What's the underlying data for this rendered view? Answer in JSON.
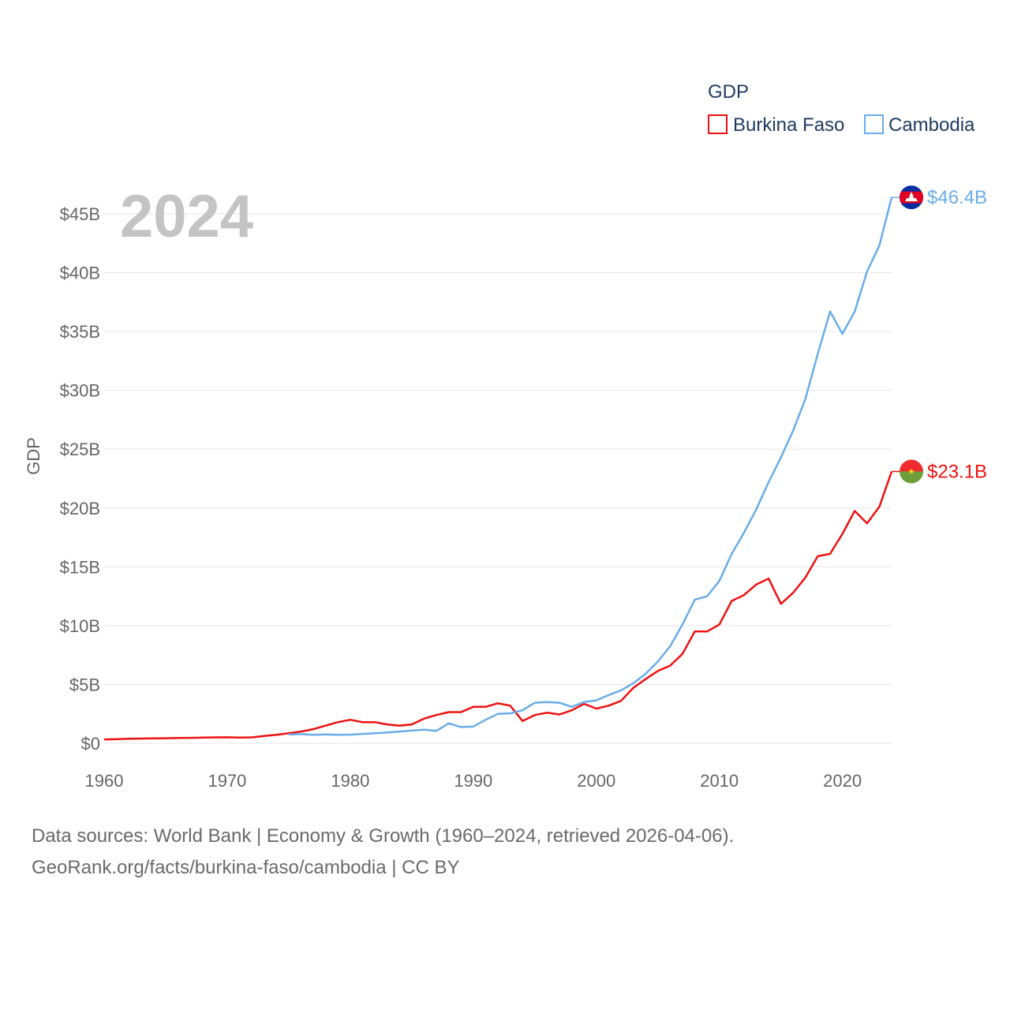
{
  "colors": {
    "burkina": "#ee1111",
    "cambodia": "#6aade8",
    "grid": "#e6e6e6",
    "year": "#c4c4c4"
  },
  "chart_data": {
    "type": "line",
    "title": "GDP",
    "year_label": "2024",
    "ylabel": "GDP",
    "xlabel": "",
    "xlim": [
      1960,
      2024
    ],
    "ylim": [
      0,
      45
    ],
    "x_ticks": [
      {
        "value": 1960,
        "label": "1960"
      },
      {
        "value": 1970,
        "label": "1970"
      },
      {
        "value": 1980,
        "label": "1980"
      },
      {
        "value": 1990,
        "label": "1990"
      },
      {
        "value": 2000,
        "label": "2000"
      },
      {
        "value": 2010,
        "label": "2010"
      },
      {
        "value": 2020,
        "label": "2020"
      }
    ],
    "y_ticks": [
      {
        "value": 0,
        "label": "$0"
      },
      {
        "value": 5,
        "label": "$5B"
      },
      {
        "value": 10,
        "label": "$10B"
      },
      {
        "value": 15,
        "label": "$15B"
      },
      {
        "value": 20,
        "label": "$20B"
      },
      {
        "value": 25,
        "label": "$25B"
      },
      {
        "value": 30,
        "label": "$30B"
      },
      {
        "value": 35,
        "label": "$35B"
      },
      {
        "value": 40,
        "label": "$40B"
      },
      {
        "value": 45,
        "label": "$45B"
      }
    ],
    "legend": {
      "title": "GDP",
      "placement": "top-right"
    },
    "series": [
      {
        "name": "Burkina Faso",
        "color": "#ee1111",
        "end_label": "$23.1B",
        "flag": "burkina-faso",
        "x": [
          1960,
          1961,
          1962,
          1963,
          1964,
          1965,
          1966,
          1967,
          1968,
          1969,
          1970,
          1971,
          1972,
          1973,
          1974,
          1975,
          1976,
          1977,
          1978,
          1979,
          1980,
          1981,
          1982,
          1983,
          1984,
          1985,
          1986,
          1987,
          1988,
          1989,
          1990,
          1991,
          1992,
          1993,
          1994,
          1995,
          1996,
          1997,
          1998,
          1999,
          2000,
          2001,
          2002,
          2003,
          2004,
          2005,
          2006,
          2007,
          2008,
          2009,
          2010,
          2011,
          2012,
          2013,
          2014,
          2015,
          2016,
          2017,
          2018,
          2019,
          2020,
          2021,
          2022,
          2023,
          2024
        ],
        "values": [
          0.33,
          0.35,
          0.38,
          0.4,
          0.42,
          0.43,
          0.45,
          0.46,
          0.48,
          0.5,
          0.51,
          0.48,
          0.5,
          0.62,
          0.72,
          0.85,
          1.0,
          1.2,
          1.5,
          1.8,
          2.0,
          1.8,
          1.8,
          1.6,
          1.5,
          1.6,
          2.1,
          2.4,
          2.65,
          2.65,
          3.1,
          3.1,
          3.4,
          3.2,
          1.9,
          2.4,
          2.6,
          2.45,
          2.8,
          3.35,
          2.95,
          3.2,
          3.6,
          4.7,
          5.45,
          6.15,
          6.6,
          7.6,
          9.5,
          9.5,
          10.1,
          12.1,
          12.6,
          13.5,
          14.0,
          11.85,
          12.8,
          14.1,
          15.9,
          16.1,
          17.8,
          19.75,
          18.7,
          20.1,
          23.1
        ]
      },
      {
        "name": "Cambodia",
        "color": "#6aade8",
        "end_label": "$46.4B",
        "flag": "cambodia",
        "x": [
          1975,
          1976,
          1977,
          1978,
          1979,
          1980,
          1981,
          1982,
          1983,
          1984,
          1985,
          1986,
          1987,
          1988,
          1989,
          1990,
          1991,
          1992,
          1993,
          1994,
          1995,
          1996,
          1997,
          1998,
          1999,
          2000,
          2001,
          2002,
          2003,
          2004,
          2005,
          2006,
          2007,
          2008,
          2009,
          2010,
          2011,
          2012,
          2013,
          2014,
          2015,
          2016,
          2017,
          2018,
          2019,
          2020,
          2021,
          2022,
          2023,
          2024
        ],
        "values": [
          0.75,
          0.78,
          0.72,
          0.76,
          0.72,
          0.74,
          0.8,
          0.85,
          0.92,
          1.0,
          1.08,
          1.16,
          1.05,
          1.7,
          1.38,
          1.42,
          2.0,
          2.5,
          2.55,
          2.8,
          3.45,
          3.5,
          3.45,
          3.1,
          3.5,
          3.65,
          4.1,
          4.5,
          5.1,
          5.9,
          6.95,
          8.25,
          10.1,
          12.2,
          12.5,
          13.8,
          16.1,
          17.9,
          19.9,
          22.2,
          24.3,
          26.6,
          29.3,
          33.1,
          36.7,
          34.8,
          36.7,
          40.1,
          42.3,
          46.4
        ]
      }
    ]
  },
  "source": {
    "line1": "Data sources: World Bank | Economy & Growth (1960–2024, retrieved 2026-04-06).",
    "line2": "GeoRank.org/facts/burkina-faso/cambodia | CC BY"
  }
}
